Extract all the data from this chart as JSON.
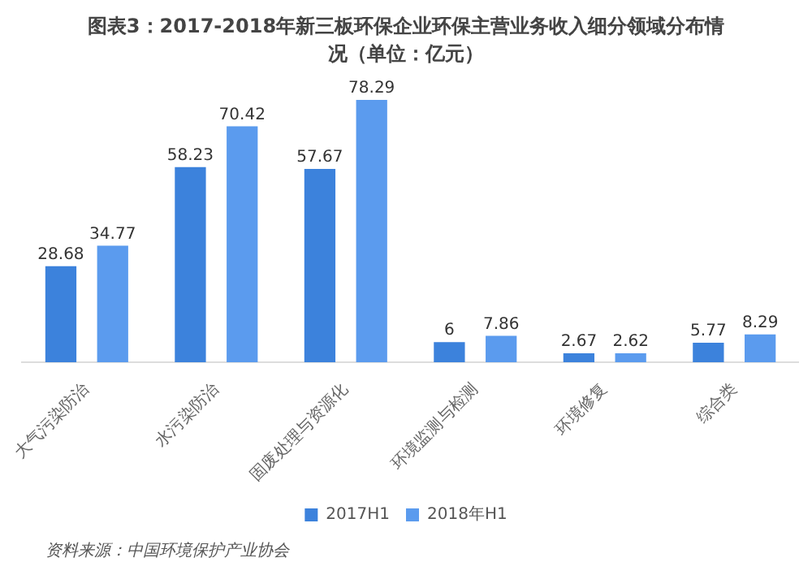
{
  "chart_data": {
    "type": "bar",
    "title": "图表3：2017-2018年新三板环保企业环保主营业务收入细分领域分布情况（单位：亿元）",
    "categories": [
      "大气污染防治",
      "水污染防治",
      "固废处理与资源化",
      "环境监测与检测",
      "环境修复",
      "综合类"
    ],
    "series": [
      {
        "name": "2017H1",
        "color": "#3c82dc",
        "values": [
          28.68,
          58.23,
          57.67,
          6,
          2.67,
          5.77
        ]
      },
      {
        "name": "2018年H1",
        "color": "#5b9bee",
        "values": [
          34.77,
          70.42,
          78.29,
          7.86,
          2.62,
          8.29
        ]
      }
    ],
    "data_labels": true,
    "grid": false,
    "legend": "bottom",
    "tick_labels": "x",
    "annotations": [
      "资料来源：中国环境保护产业协会"
    ]
  }
}
